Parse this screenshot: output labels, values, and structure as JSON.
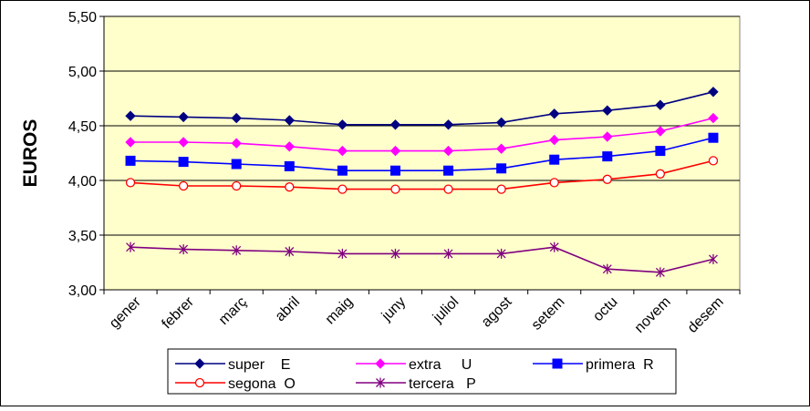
{
  "chart_data": {
    "type": "line",
    "ylabel": "EUROS",
    "ylim": [
      3.0,
      5.5
    ],
    "yticks": [
      "3,00",
      "3,50",
      "4,00",
      "4,50",
      "5,00",
      "5,50"
    ],
    "ytick_values": [
      3.0,
      3.5,
      4.0,
      4.5,
      5.0,
      5.5
    ],
    "categories": [
      "gener",
      "febrer",
      "març",
      "abril",
      "maig",
      "juny",
      "juliol",
      "agost",
      "setem",
      "octu",
      "novem",
      "desem"
    ],
    "grid": "horizontal",
    "legend_position": "bottom",
    "plot_background": "#FFFFCC",
    "series": [
      {
        "name": "super    E",
        "color": "#000080",
        "marker": "diamond-filled",
        "values": [
          4.59,
          4.58,
          4.57,
          4.55,
          4.51,
          4.51,
          4.51,
          4.53,
          4.61,
          4.64,
          4.69,
          4.81
        ]
      },
      {
        "name": "extra     U",
        "color": "#FF00FF",
        "marker": "diamond-filled",
        "values": [
          4.35,
          4.35,
          4.34,
          4.31,
          4.27,
          4.27,
          4.27,
          4.29,
          4.37,
          4.4,
          4.45,
          4.57
        ]
      },
      {
        "name": "primera  R",
        "color": "#0000FF",
        "marker": "square-filled",
        "values": [
          4.18,
          4.17,
          4.15,
          4.13,
          4.09,
          4.09,
          4.09,
          4.11,
          4.19,
          4.22,
          4.27,
          4.39
        ]
      },
      {
        "name": "segona  O",
        "color": "#FF0000",
        "marker": "circle-open",
        "values": [
          3.98,
          3.95,
          3.95,
          3.94,
          3.92,
          3.92,
          3.92,
          3.92,
          3.98,
          4.01,
          4.06,
          4.18
        ]
      },
      {
        "name": "tercera   P",
        "color": "#800080",
        "marker": "star",
        "values": [
          3.39,
          3.37,
          3.36,
          3.35,
          3.33,
          3.33,
          3.33,
          3.33,
          3.39,
          3.19,
          3.16,
          3.28
        ]
      }
    ]
  }
}
